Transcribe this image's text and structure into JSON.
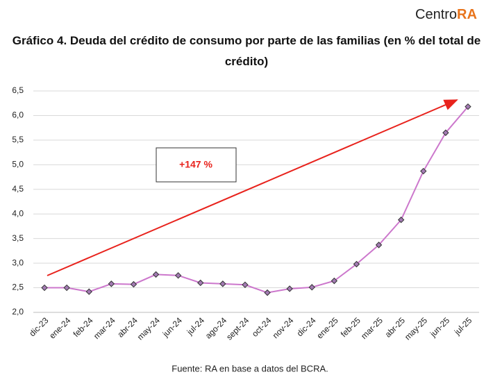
{
  "logo": {
    "name": "Centro",
    "accent": "RA"
  },
  "chart_data": {
    "type": "line",
    "title": "Gráfico 4. Deuda del crédito de consumo por parte de las familias (en % del total de crédito)",
    "categories": [
      "dic-23",
      "ene-24",
      "feb-24",
      "mar-24",
      "abr-24",
      "may-24",
      "jun-24",
      "jul-24",
      "ago-24",
      "sept-24",
      "oct-24",
      "nov-24",
      "dic-24",
      "ene-25",
      "feb-25",
      "mar-25",
      "abr-25",
      "may-25",
      "jun-25",
      "jul-25"
    ],
    "values": [
      2.5,
      2.5,
      2.42,
      2.58,
      2.57,
      2.77,
      2.75,
      2.6,
      2.58,
      2.56,
      2.4,
      2.48,
      2.51,
      2.64,
      2.98,
      3.37,
      3.88,
      4.87,
      5.65,
      6.18
    ],
    "color": "#cc77cc",
    "marker_color": "#a37bb3",
    "ylim": [
      2.0,
      6.5
    ],
    "yticks": [
      {
        "value": 2.0,
        "label": "2,0"
      },
      {
        "value": 2.5,
        "label": "2,5"
      },
      {
        "value": 3.0,
        "label": "3,0"
      },
      {
        "value": 3.5,
        "label": "3,5"
      },
      {
        "value": 4.0,
        "label": "4,0"
      },
      {
        "value": 4.5,
        "label": "4,5"
      },
      {
        "value": 5.0,
        "label": "5,0"
      },
      {
        "value": 5.5,
        "label": "5,5"
      },
      {
        "value": 6.0,
        "label": "6,0"
      },
      {
        "value": 6.5,
        "label": "6,5"
      }
    ],
    "grid": true,
    "annotation": "+147 %",
    "source": "Fuente: RA en base a datos del BCRA."
  }
}
